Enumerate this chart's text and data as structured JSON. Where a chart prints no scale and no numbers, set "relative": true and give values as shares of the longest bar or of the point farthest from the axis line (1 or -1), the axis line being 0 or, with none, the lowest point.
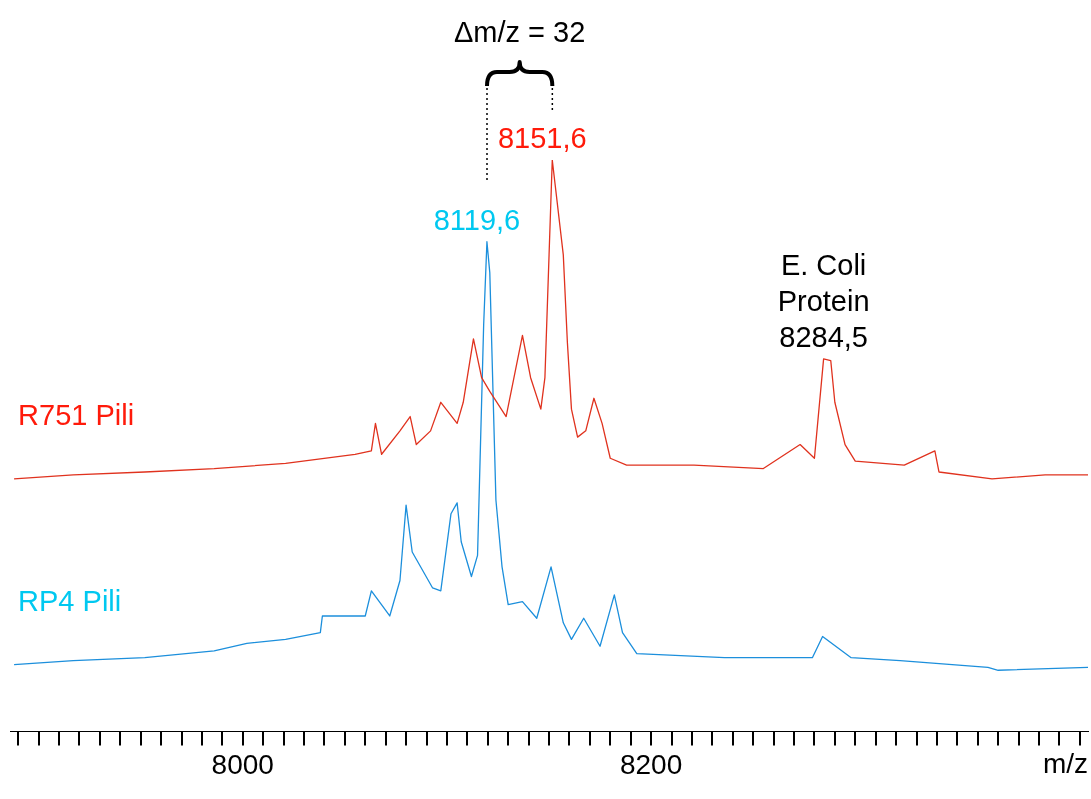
{
  "chart_data": {
    "type": "line",
    "relative": true,
    "xlabel": "m/z",
    "legend": false,
    "grid": false,
    "marker": "none",
    "line_style": "solid",
    "tick_labels": "x",
    "xlim": [
      7886,
      8414
    ],
    "xticks": [
      {
        "value": 7890,
        "label": null
      },
      {
        "value": 7900,
        "label": null
      },
      {
        "value": 7910,
        "label": null
      },
      {
        "value": 7920,
        "label": null
      },
      {
        "value": 7930,
        "label": null
      },
      {
        "value": 7940,
        "label": null
      },
      {
        "value": 7950,
        "label": null
      },
      {
        "value": 7960,
        "label": null
      },
      {
        "value": 7970,
        "label": null
      },
      {
        "value": 7980,
        "label": null
      },
      {
        "value": 7990,
        "label": null
      },
      8000,
      {
        "value": 8010,
        "label": null
      },
      {
        "value": 8020,
        "label": null
      },
      {
        "value": 8030,
        "label": null
      },
      {
        "value": 8040,
        "label": null
      },
      {
        "value": 8050,
        "label": null
      },
      {
        "value": 8060,
        "label": null
      },
      {
        "value": 8070,
        "label": null
      },
      {
        "value": 8080,
        "label": null
      },
      {
        "value": 8090,
        "label": null
      },
      {
        "value": 8100,
        "label": null
      },
      {
        "value": 8110,
        "label": null
      },
      {
        "value": 8120,
        "label": null
      },
      {
        "value": 8130,
        "label": null
      },
      {
        "value": 8140,
        "label": null
      },
      {
        "value": 8150,
        "label": null
      },
      {
        "value": 8160,
        "label": null
      },
      {
        "value": 8170,
        "label": null
      },
      {
        "value": 8180,
        "label": null
      },
      {
        "value": 8190,
        "label": null
      },
      8200,
      {
        "value": 8210,
        "label": null
      },
      {
        "value": 8220,
        "label": null
      },
      {
        "value": 8230,
        "label": null
      },
      {
        "value": 8240,
        "label": null
      },
      {
        "value": 8250,
        "label": null
      },
      {
        "value": 8260,
        "label": null
      },
      {
        "value": 8270,
        "label": null
      },
      {
        "value": 8280,
        "label": null
      },
      {
        "value": 8290,
        "label": null
      },
      {
        "value": 8300,
        "label": null
      },
      {
        "value": 8310,
        "label": null
      },
      {
        "value": 8320,
        "label": null
      },
      {
        "value": 8330,
        "label": null
      },
      {
        "value": 8340,
        "label": null
      },
      {
        "value": 8350,
        "label": null
      },
      {
        "value": 8360,
        "label": null
      },
      {
        "value": 8370,
        "label": null
      },
      {
        "value": 8380,
        "label": null
      },
      {
        "value": 8390,
        "label": null
      },
      {
        "value": 8400,
        "label": null
      },
      {
        "value": 8410,
        "label": null
      }
    ],
    "annotations": [
      "Δm/z = 32",
      {
        "text": "8119,6",
        "x": 8119.6,
        "y": 0.857
      },
      {
        "text": "8151,6",
        "x": 8151.6,
        "y": 1.0
      },
      {
        "text": "E. Coli\nProtein\n8284,5",
        "x": 8284.5,
        "y": 0.652
      }
    ],
    "series": [
      {
        "name": "R751 Pili",
        "color": "#e0321e",
        "x": [
          7888,
          7917,
          7952,
          7986,
          8021,
          8055,
          8063,
          8065,
          8068,
          8077,
          8082,
          8085,
          8092,
          8097,
          8105,
          8108,
          8113,
          8117,
          8121,
          8129,
          8137,
          8141,
          8146,
          8148,
          8151.6,
          8157,
          8159,
          8161,
          8164,
          8168,
          8172,
          8176,
          8180,
          8188,
          8221,
          8255,
          8273,
          8280,
          8284.5,
          8288,
          8290,
          8295,
          8300,
          8324,
          8339,
          8341,
          8367,
          8393,
          8414
        ],
        "values": [
          0.442,
          0.449,
          0.454,
          0.46,
          0.469,
          0.485,
          0.491,
          0.539,
          0.485,
          0.526,
          0.551,
          0.502,
          0.526,
          0.576,
          0.539,
          0.576,
          0.687,
          0.619,
          0.595,
          0.551,
          0.693,
          0.619,
          0.564,
          0.619,
          1.0,
          0.834,
          0.681,
          0.564,
          0.515,
          0.526,
          0.583,
          0.539,
          0.478,
          0.466,
          0.466,
          0.46,
          0.502,
          0.478,
          0.652,
          0.649,
          0.576,
          0.502,
          0.473,
          0.466,
          0.491,
          0.454,
          0.442,
          0.449,
          0.449
        ]
      },
      {
        "name": "RP4 Pili",
        "color": "#1c8fdc",
        "x": [
          7888,
          7917,
          7952,
          7986,
          8002,
          8021,
          8038,
          8039,
          8060,
          8063,
          8072,
          8077,
          8080,
          8083,
          8093,
          8097,
          8102,
          8105,
          8107,
          8112,
          8115,
          8118,
          8119.6,
          8121,
          8124,
          8127,
          8130,
          8137,
          8144,
          8151,
          8157,
          8161,
          8167,
          8175,
          8182,
          8186,
          8193,
          8236,
          8279,
          8284,
          8298,
          8322,
          8365,
          8370,
          8414
        ],
        "values": [
          0.117,
          0.124,
          0.129,
          0.141,
          0.154,
          0.161,
          0.173,
          0.202,
          0.202,
          0.246,
          0.202,
          0.264,
          0.396,
          0.314,
          0.251,
          0.246,
          0.381,
          0.4,
          0.332,
          0.271,
          0.308,
          0.712,
          0.857,
          0.803,
          0.405,
          0.288,
          0.222,
          0.227,
          0.198,
          0.288,
          0.19,
          0.161,
          0.198,
          0.149,
          0.239,
          0.173,
          0.136,
          0.129,
          0.129,
          0.166,
          0.129,
          0.124,
          0.112,
          0.107,
          0.112
        ]
      }
    ]
  }
}
